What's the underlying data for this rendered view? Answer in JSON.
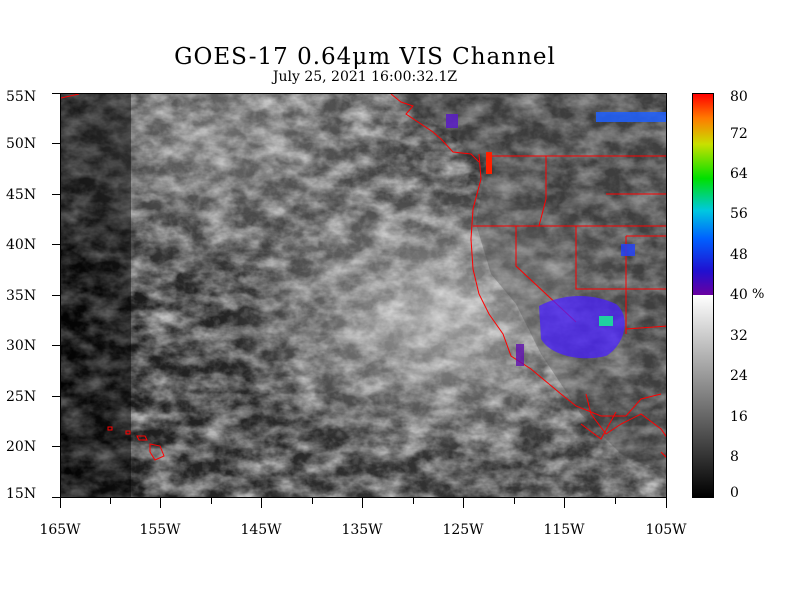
{
  "title": "GOES-17  0.64μm VIS Channel",
  "subtitle": "July 25,  2021 16:00:32.1Z",
  "lat_labels": [
    "55N",
    "50N",
    "45N",
    "40N",
    "35N",
    "30N",
    "25N",
    "20N",
    "15N"
  ],
  "lon_labels": [
    "165W",
    "155W",
    "145W",
    "135W",
    "125W",
    "115W",
    "105W"
  ],
  "colorbar": {
    "labels": [
      "80",
      "72",
      "64",
      "56",
      "48",
      "40",
      "32",
      "24",
      "16",
      "8",
      "0"
    ],
    "unit": "%",
    "range": [
      0,
      80
    ],
    "gray_section": [
      0,
      40
    ],
    "color_section": [
      40,
      80
    ]
  },
  "colors": {
    "border": "#ff0000",
    "background": "#ffffff",
    "frame": "#000000"
  }
}
